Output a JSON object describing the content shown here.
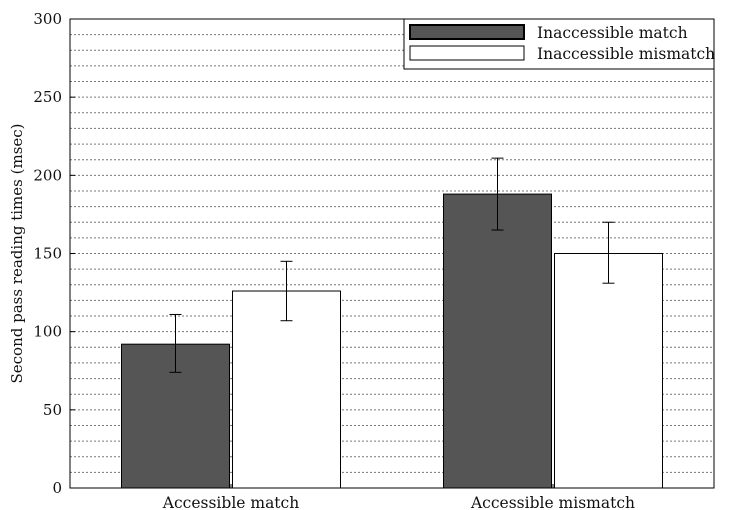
{
  "chart_data": {
    "type": "bar",
    "title": "",
    "xlabel": "",
    "ylabel": "Second pass reading times (msec)",
    "ylim": [
      0,
      300
    ],
    "yticks": [
      0,
      50,
      100,
      150,
      200,
      250,
      300
    ],
    "minor_grid_step": 10,
    "grid": true,
    "legend_position": "top-right",
    "categories": [
      "Accessible match",
      "Accessible mismatch"
    ],
    "series": [
      {
        "name": "Inaccessible match",
        "color": "#555555",
        "values": [
          92,
          188
        ],
        "error_low": [
          74,
          165
        ],
        "error_high": [
          111,
          211
        ]
      },
      {
        "name": "Inaccessible mismatch",
        "color": "#ffffff",
        "values": [
          126,
          150
        ],
        "error_low": [
          107,
          131
        ],
        "error_high": [
          145,
          170
        ]
      }
    ]
  }
}
